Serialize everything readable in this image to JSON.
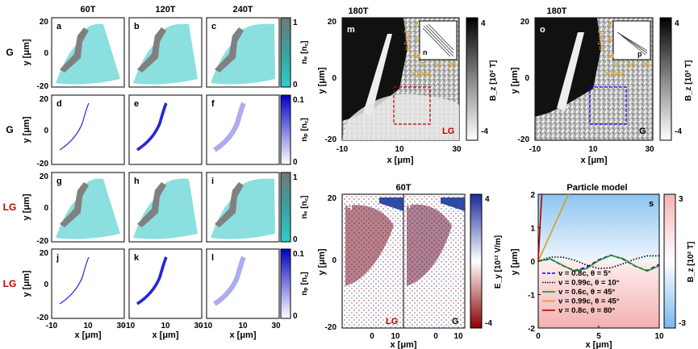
{
  "colors": {
    "teal": "#2ec4c4",
    "gray_fill": "#808080",
    "blue": "#1010d0",
    "red_label": "#c00000",
    "red_dash": "#c00000",
    "blue_dash": "#0000ff",
    "green": "#2e8b22",
    "gold": "#d4a017",
    "red_line": "#b00000"
  },
  "left_grid": {
    "col_titles": [
      "60T",
      "120T",
      "240T"
    ],
    "row_labels": [
      "G",
      "G",
      "LG",
      "LG"
    ],
    "panel_letters": [
      "a",
      "b",
      "c",
      "d",
      "e",
      "f",
      "g",
      "h",
      "i",
      "j",
      "k",
      "l"
    ],
    "ylabel": "y [μm]",
    "xlabel": "x [μm]",
    "y_ticks": [
      "20",
      "0",
      "-20"
    ],
    "x_ticks": [
      "-10",
      "10",
      "30"
    ],
    "cbar_ne": {
      "label": "nₑ [n꜀]",
      "top": "1",
      "bottom": "0"
    },
    "cbar_np": {
      "label": "nₚ [n꜀]",
      "top": "0.1",
      "bottom": "0"
    }
  },
  "panel_m": {
    "title": "180T",
    "letter": "m",
    "inset_letter": "n",
    "tag": "LG",
    "ylabel": "y [μm]",
    "xlabel": "x [μm]",
    "y_ticks": [
      "20",
      "0",
      "-20"
    ],
    "x_ticks": [
      "-10",
      "10",
      "30"
    ],
    "inset_y_ticks": [
      "2",
      "6",
      "10"
    ],
    "inset_x_ticks": [
      "0",
      "10",
      "20"
    ],
    "inset_xlabel": "x [μm]",
    "inset_ylabel": "y [μm]",
    "cbar": {
      "label": "B_z [10² T]",
      "top": "4",
      "bottom": "-4"
    }
  },
  "panel_o": {
    "title": "180T",
    "letter": "o",
    "inset_letter": "p",
    "tag": "G",
    "ylabel": "y [μm]",
    "xlabel": "x [μm]",
    "y_ticks": [
      "20",
      "0",
      "-20"
    ],
    "x_ticks": [
      "-10",
      "10",
      "30"
    ],
    "inset_y_ticks": [
      "2",
      "6",
      "10"
    ],
    "inset_x_ticks": [
      "0",
      "10",
      "20"
    ],
    "inset_xlabel": "x [μm]",
    "inset_ylabel": "y [μm]",
    "cbar": {
      "label": "B_z [10² T]",
      "top": "4",
      "bottom": "-4"
    }
  },
  "panel_qr": {
    "title": "60T",
    "letters": [
      "q",
      "r"
    ],
    "tags": [
      "LG",
      "G"
    ],
    "ylabel": "y [μm]",
    "xlabel": "x [μm]",
    "y_ticks": [
      "20",
      "0",
      "-20"
    ],
    "x_ticks": [
      "0",
      "10",
      "0",
      "10"
    ],
    "cbar": {
      "label": "E_y [10¹² V/m]",
      "top": "4",
      "bottom": "-4"
    }
  },
  "chart_data": {
    "type": "line",
    "title": "Particle model",
    "panel_letter": "s",
    "xlabel": "x [μm]",
    "ylabel": "y [μm]",
    "xlim": [
      0,
      10
    ],
    "ylim": [
      -2,
      2
    ],
    "x_ticks": [
      0,
      5,
      10
    ],
    "y_ticks": [
      -2,
      -1,
      0,
      1,
      2
    ],
    "colorbar": {
      "label": "B_z [10² T]",
      "top": "3",
      "bottom": "-3"
    },
    "series": [
      {
        "name": "v = 0.8c,    θ = 5°",
        "style": "dashed",
        "color": "#0000ff",
        "x": [
          0,
          1,
          2,
          3,
          4,
          5,
          6,
          7,
          8,
          9,
          10
        ],
        "y": [
          0,
          0.06,
          -0.13,
          -0.28,
          -0.18,
          0.04,
          0.18,
          0.06,
          -0.15,
          -0.28,
          -0.1
        ]
      },
      {
        "name": "v = 0.99c,  θ = 10°",
        "style": "dotted",
        "color": "#000000",
        "x": [
          0,
          1,
          2,
          3,
          4,
          5,
          6,
          7,
          8,
          9,
          10
        ],
        "y": [
          0,
          0.12,
          0.12,
          0.03,
          -0.12,
          -0.22,
          -0.2,
          -0.08,
          0.06,
          0.16,
          0.16
        ]
      },
      {
        "name": "v = 0.6c,    θ = 45°",
        "style": "solid",
        "color": "#2e8b22",
        "x": [
          0,
          1,
          2,
          3,
          4,
          5,
          6,
          7,
          8,
          9,
          10
        ],
        "y": [
          0,
          0.07,
          -0.12,
          -0.3,
          -0.22,
          0.02,
          0.17,
          0.08,
          -0.14,
          -0.3,
          -0.14
        ]
      },
      {
        "name": "v = 0.99c,  θ = 45°",
        "style": "solid",
        "color": "#d4a017",
        "x": [
          0,
          0.5,
          1,
          1.5,
          2,
          2.5
        ],
        "y": [
          0,
          0.4,
          0.8,
          1.2,
          1.6,
          2.0
        ]
      },
      {
        "name": "v = 0.8c,    θ = 80°",
        "style": "solid",
        "color": "#b00000",
        "x": [
          0,
          0.1,
          0.2,
          0.3
        ],
        "y": [
          0,
          0.7,
          1.4,
          2.0
        ]
      }
    ]
  }
}
